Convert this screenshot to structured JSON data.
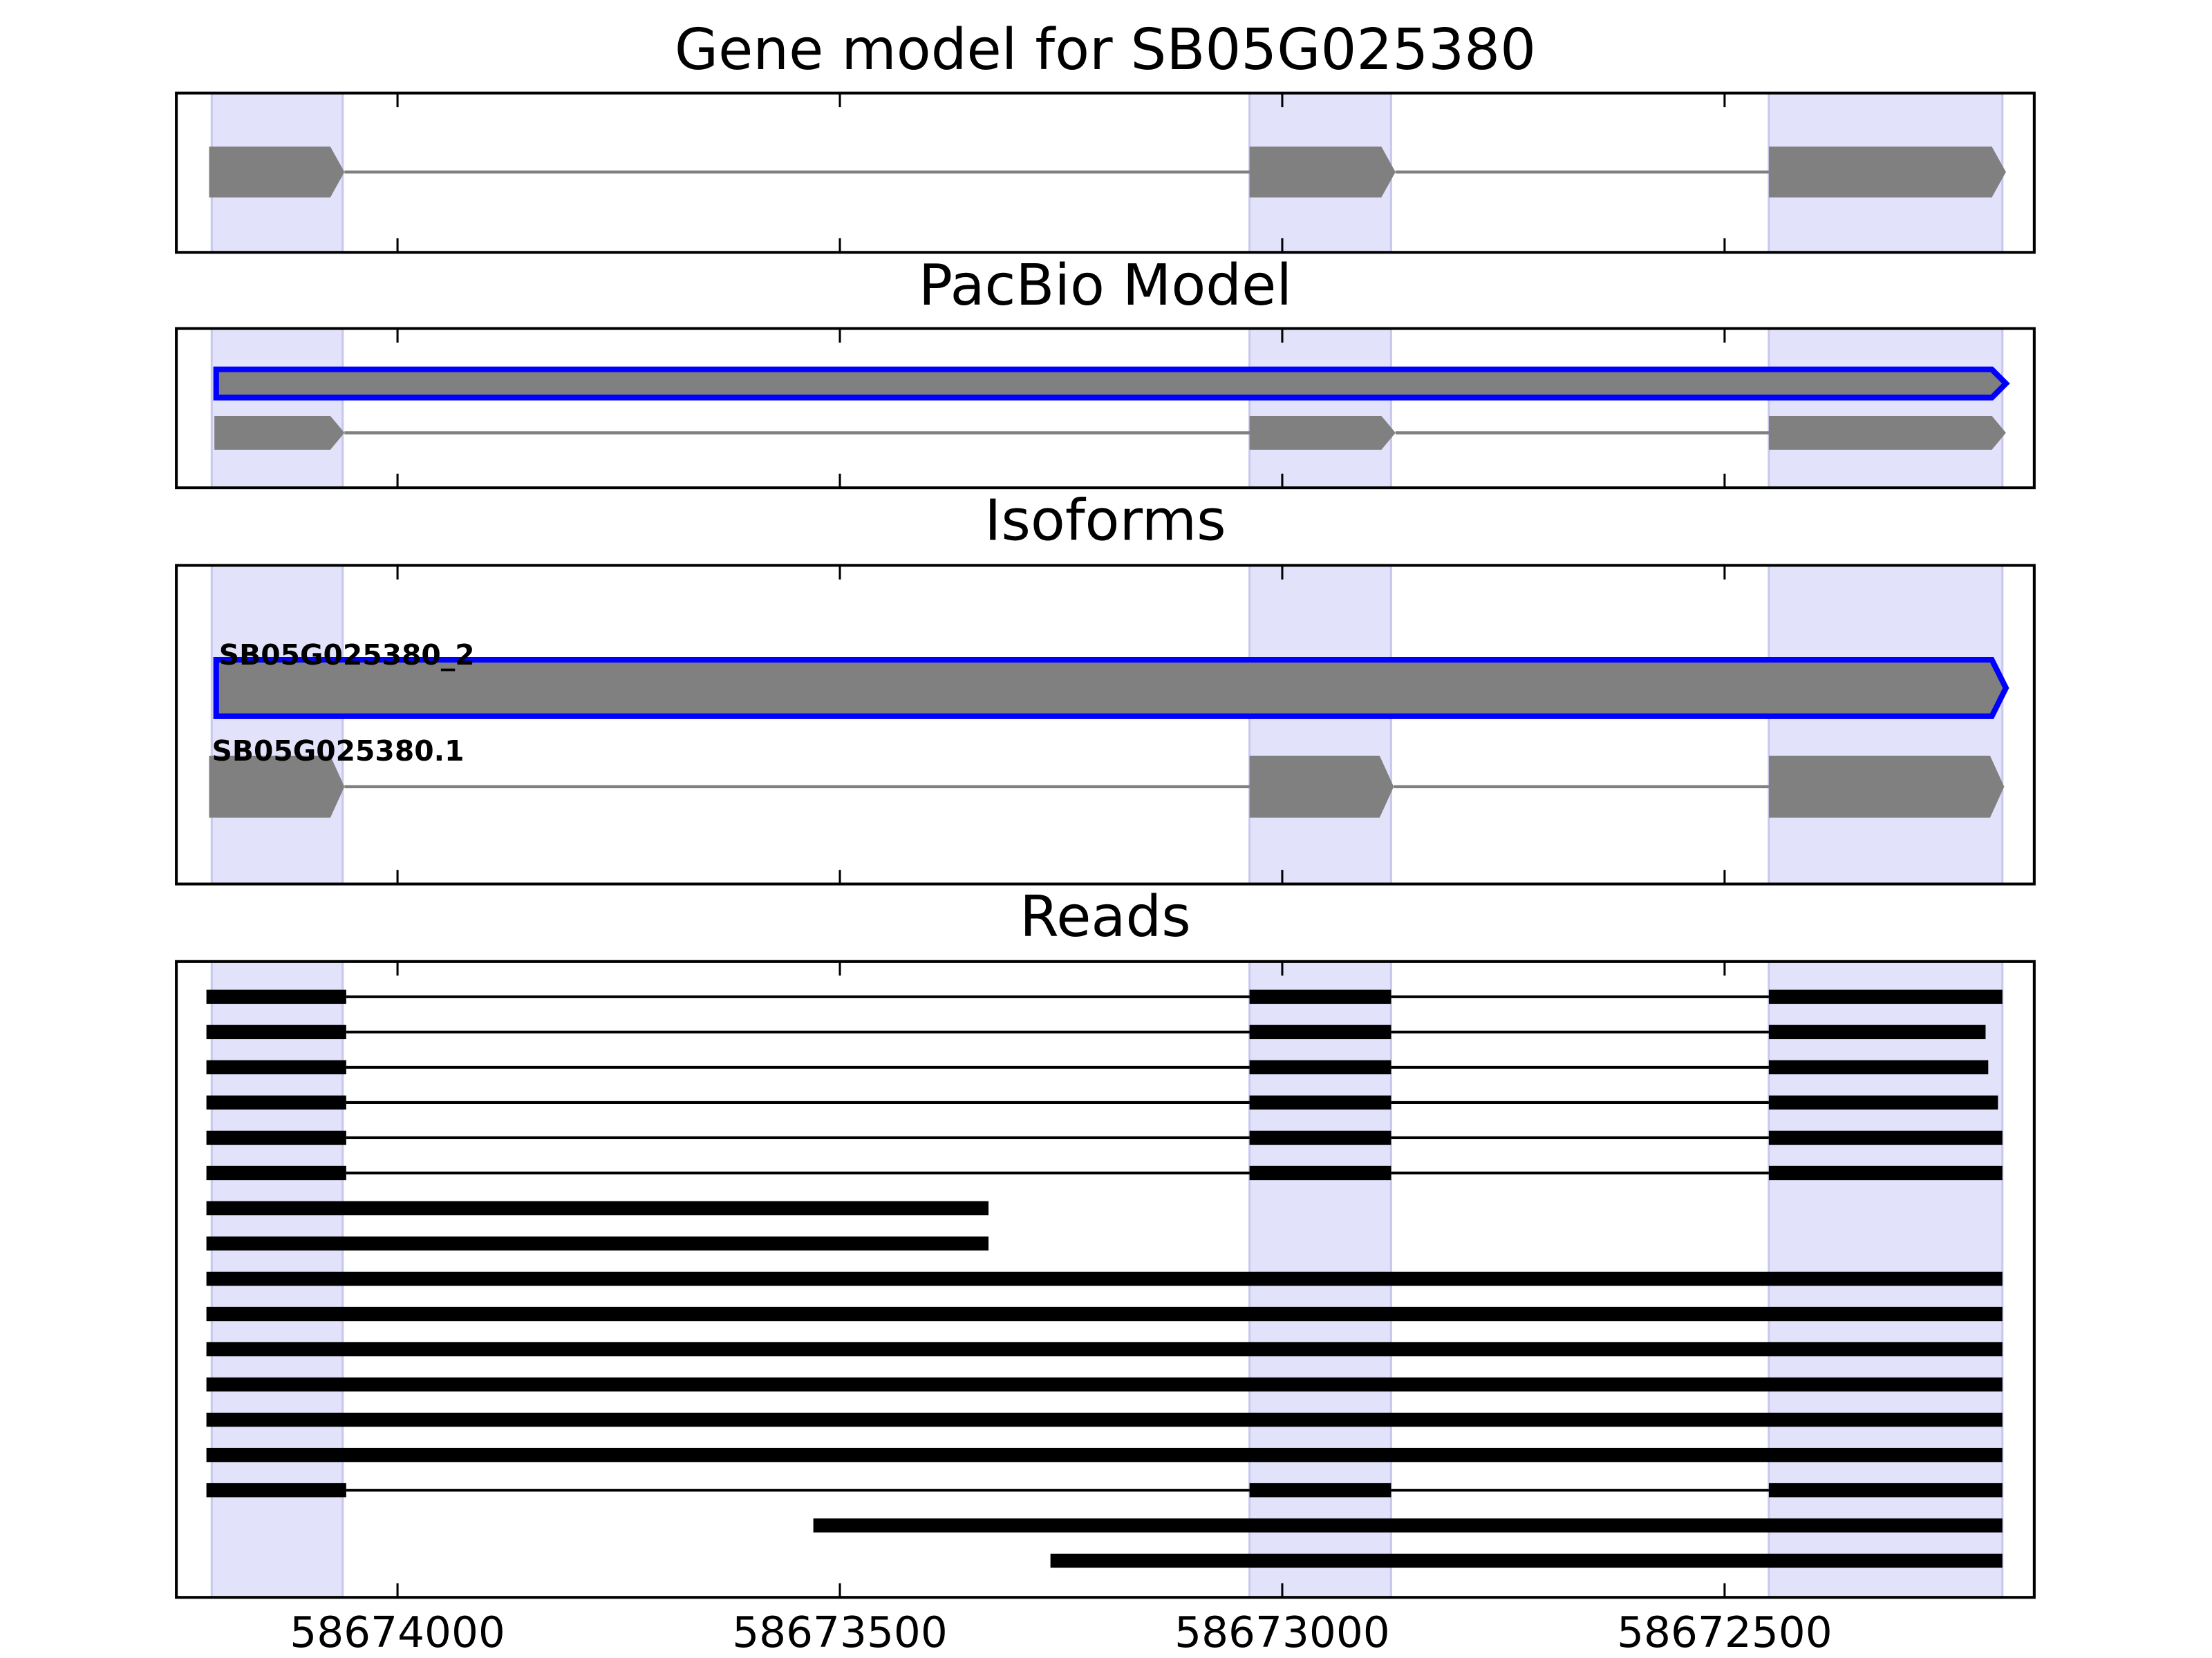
{
  "chart_data": {
    "type": "gene-tracks",
    "xlim": [
      58674250,
      58672150
    ],
    "xticks": [
      58674000,
      58673500,
      58673000,
      58672500
    ],
    "shade_color": "#e2e2fb",
    "exon_regions": [
      [
        58674210,
        58674062
      ],
      [
        58673037,
        58672877
      ],
      [
        58672450,
        58672186
      ]
    ],
    "panels": [
      {
        "title": "Gene model for SB05G025380",
        "tracks": [
          {
            "color": "#808080",
            "exons": [
              [
                58674213,
                58674060
              ],
              [
                58673037,
                58672872
              ],
              [
                58672450,
                58672182
              ]
            ]
          }
        ]
      },
      {
        "title": "PacBio Model",
        "tracks": [
          {
            "color": "#808080",
            "outline": "#0000ff",
            "exons": [
              [
                58674205,
                58672182
              ]
            ]
          },
          {
            "color": "#808080",
            "exons": [
              [
                58674207,
                58674060
              ],
              [
                58673037,
                58672872
              ],
              [
                58672450,
                58672182
              ]
            ]
          }
        ]
      },
      {
        "title": "Isoforms",
        "tracks": [
          {
            "label": "SB05G025380_2",
            "color": "#808080",
            "outline": "#0000ff",
            "exons": [
              [
                58674205,
                58672182
              ]
            ]
          },
          {
            "label": "SB05G025380.1",
            "color": "#808080",
            "exons": [
              [
                58674213,
                58674060
              ],
              [
                58673037,
                58672874
              ],
              [
                58672450,
                58672184
              ]
            ]
          }
        ]
      },
      {
        "title": "Reads",
        "read_color": "#000000",
        "tracks": [
          {
            "exons": [
              [
                58674216,
                58674058
              ],
              [
                58673037,
                58672877
              ],
              [
                58672450,
                58672186
              ]
            ]
          },
          {
            "exons": [
              [
                58674216,
                58674058
              ],
              [
                58673037,
                58672877
              ],
              [
                58672450,
                58672205
              ]
            ]
          },
          {
            "exons": [
              [
                58674216,
                58674058
              ],
              [
                58673037,
                58672877
              ],
              [
                58672450,
                58672202
              ]
            ]
          },
          {
            "exons": [
              [
                58674216,
                58674058
              ],
              [
                58673037,
                58672877
              ],
              [
                58672450,
                58672191
              ]
            ]
          },
          {
            "exons": [
              [
                58674216,
                58674058
              ],
              [
                58673037,
                58672877
              ],
              [
                58672450,
                58672186
              ]
            ]
          },
          {
            "exons": [
              [
                58674216,
                58674058
              ],
              [
                58673037,
                58672877
              ],
              [
                58672450,
                58672186
              ]
            ]
          },
          {
            "exons": [
              [
                58674216,
                58673332
              ]
            ]
          },
          {
            "exons": [
              [
                58674216,
                58673332
              ]
            ]
          },
          {
            "exons": [
              [
                58674216,
                58672186
              ]
            ]
          },
          {
            "exons": [
              [
                58674216,
                58672186
              ]
            ]
          },
          {
            "exons": [
              [
                58674216,
                58672186
              ]
            ]
          },
          {
            "exons": [
              [
                58674216,
                58672186
              ]
            ]
          },
          {
            "exons": [
              [
                58674216,
                58672186
              ]
            ]
          },
          {
            "exons": [
              [
                58674216,
                58672186
              ]
            ]
          },
          {
            "exons": [
              [
                58674216,
                58674058
              ],
              [
                58673037,
                58672877
              ],
              [
                58672450,
                58672186
              ]
            ]
          },
          {
            "exons": [
              [
                58673530,
                58672186
              ]
            ]
          },
          {
            "exons": [
              [
                58673262,
                58672186
              ]
            ]
          }
        ]
      }
    ]
  }
}
